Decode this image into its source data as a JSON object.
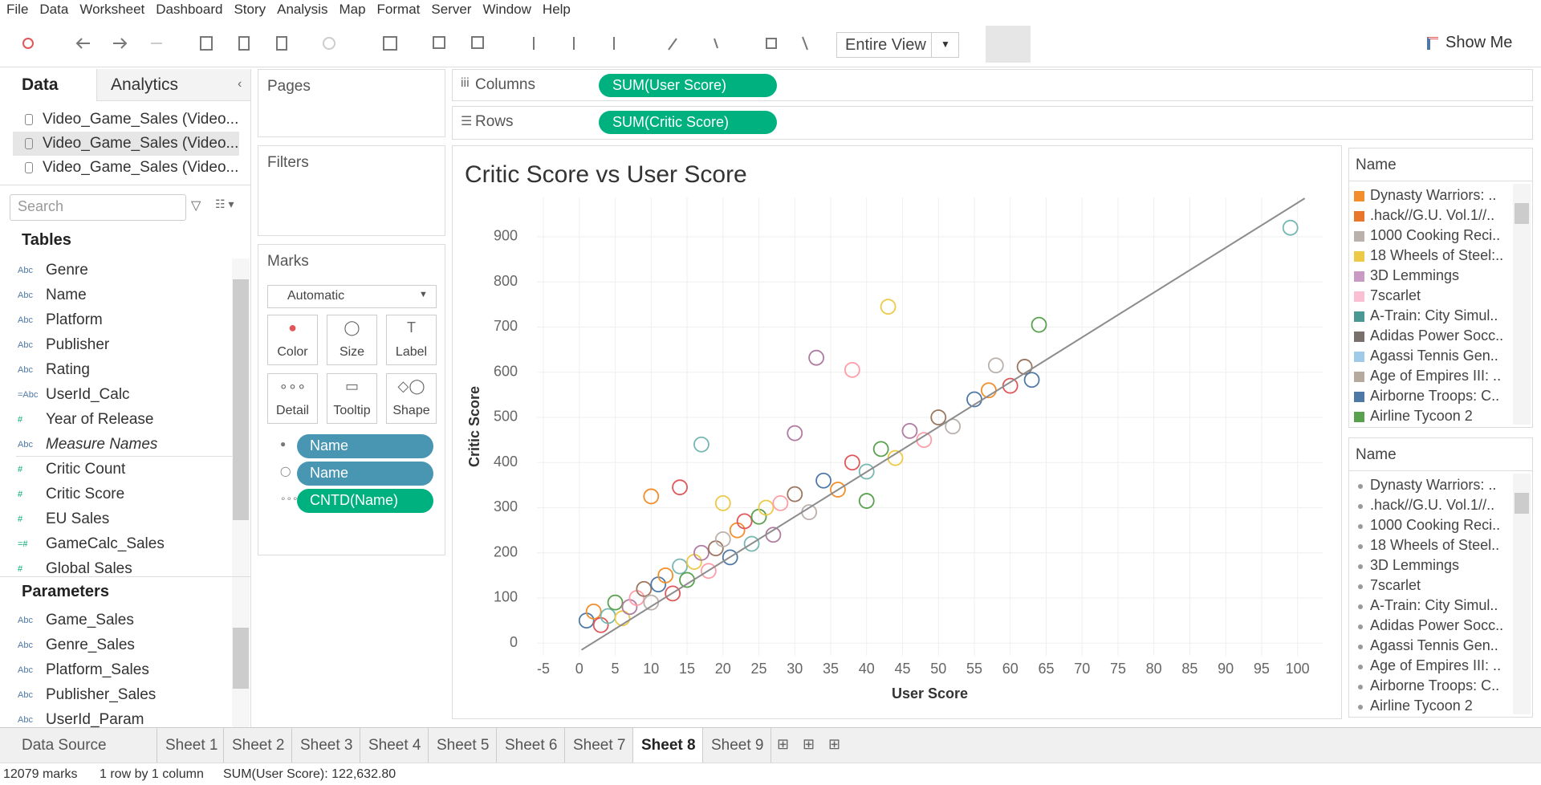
{
  "menu": [
    "File",
    "Data",
    "Worksheet",
    "Dashboard",
    "Story",
    "Analysis",
    "Map",
    "Format",
    "Server",
    "Window",
    "Help"
  ],
  "toolbar": {
    "view_mode": "Entire View",
    "show_me": "Show Me"
  },
  "data_pane": {
    "tabs": [
      "Data",
      "Analytics"
    ],
    "sources": [
      "Video_Game_Sales (Video...",
      "Video_Game_Sales (Video...",
      "Video_Game_Sales (Video..."
    ],
    "search_placeholder": "Search",
    "tables_heading": "Tables",
    "dimensions": [
      {
        "icon": "Abc",
        "name": "Genre"
      },
      {
        "icon": "Abc",
        "name": "Name"
      },
      {
        "icon": "Abc",
        "name": "Platform"
      },
      {
        "icon": "Abc",
        "name": "Publisher"
      },
      {
        "icon": "Abc",
        "name": "Rating"
      },
      {
        "icon": "=Abc",
        "name": "UserId_Calc"
      },
      {
        "icon": "#",
        "name": "Year of Release"
      },
      {
        "icon": "Abc",
        "name": "Measure Names",
        "italic": true
      }
    ],
    "measures": [
      {
        "icon": "#",
        "name": "Critic Count"
      },
      {
        "icon": "#",
        "name": "Critic Score"
      },
      {
        "icon": "#",
        "name": "EU Sales"
      },
      {
        "icon": "=#",
        "name": "GameCalc_Sales"
      },
      {
        "icon": "#",
        "name": "Global Sales"
      }
    ],
    "parameters_heading": "Parameters",
    "parameters": [
      {
        "icon": "Abc",
        "name": "Game_Sales"
      },
      {
        "icon": "Abc",
        "name": "Genre_Sales"
      },
      {
        "icon": "Abc",
        "name": "Platform_Sales"
      },
      {
        "icon": "Abc",
        "name": "Publisher_Sales"
      },
      {
        "icon": "Abc",
        "name": "UserId_Param"
      }
    ]
  },
  "cards": {
    "pages": "Pages",
    "filters": "Filters",
    "marks": {
      "title": "Marks",
      "mark_type": "Automatic",
      "buttons": [
        "Color",
        "Size",
        "Label",
        "Detail",
        "Tooltip",
        "Shape"
      ],
      "pills": [
        {
          "label": "Name",
          "color": "#4996b2"
        },
        {
          "label": "Name",
          "color": "#4996b2"
        },
        {
          "label": "CNTD(Name)",
          "color": "#00b180"
        }
      ]
    }
  },
  "shelves": {
    "columns": {
      "label": "Columns",
      "pill": "SUM(User Score)"
    },
    "rows": {
      "label": "Rows",
      "pill": "SUM(Critic Score)"
    }
  },
  "chart_data": {
    "type": "scatter",
    "title": "Critic Score vs User Score",
    "x_label": "User Score",
    "y_label": "Critic Score",
    "x": [
      1,
      2,
      3,
      4,
      5,
      6,
      7,
      8,
      9,
      10,
      11,
      12,
      13,
      14,
      15,
      16,
      17,
      18,
      19,
      20,
      21,
      22,
      23,
      24,
      25,
      26,
      27,
      28,
      30,
      32,
      34,
      36,
      38,
      40,
      42,
      44,
      46,
      48,
      50,
      52,
      55,
      57,
      60,
      99,
      64,
      43,
      33,
      38,
      62,
      58,
      63,
      10,
      14,
      17,
      40,
      20,
      30
    ],
    "y": [
      50,
      70,
      40,
      60,
      90,
      55,
      80,
      100,
      120,
      90,
      130,
      150,
      110,
      170,
      140,
      180,
      200,
      160,
      210,
      230,
      190,
      250,
      270,
      220,
      280,
      300,
      240,
      310,
      330,
      290,
      360,
      340,
      400,
      380,
      430,
      410,
      470,
      450,
      500,
      480,
      540,
      560,
      570,
      920,
      705,
      745,
      632,
      605,
      612,
      615,
      583,
      325,
      345,
      440,
      315,
      310,
      465
    ],
    "palette": [
      "#4e79a7",
      "#f28e2b",
      "#e15759",
      "#76b7b2",
      "#59a14f",
      "#edc948",
      "#b07aa1",
      "#ff9da7",
      "#9c755f",
      "#bab0ac"
    ],
    "xlim": [
      -5.9,
      103.5
    ],
    "ylim": [
      -28,
      987
    ],
    "xticks": [
      -5,
      0,
      5,
      10,
      15,
      20,
      25,
      30,
      35,
      40,
      45,
      50,
      55,
      60,
      65,
      70,
      75,
      80,
      85,
      90,
      95,
      100
    ],
    "yticks": [
      0,
      100,
      200,
      300,
      400,
      500,
      600,
      700,
      800,
      900
    ],
    "grid": true,
    "trend_line": {
      "x": [
        0.3,
        101
      ],
      "y": [
        -15,
        985
      ],
      "color": "#8c8c8c"
    }
  },
  "legends": [
    {
      "title": "Name",
      "items": [
        {
          "label": "Dynasty Warriors: ..",
          "color": "#f28e2b"
        },
        {
          "label": ".hack//G.U. Vol.1//..",
          "color": "#e8762b"
        },
        {
          "label": "1000 Cooking Reci..",
          "color": "#bab0ac"
        },
        {
          "label": "18 Wheels of Steel:..",
          "color": "#edc948"
        },
        {
          "label": "3D Lemmings",
          "color": "#c99bc4"
        },
        {
          "label": "7scarlet",
          "color": "#fabfd2"
        },
        {
          "label": "A-Train: City Simul..",
          "color": "#499894"
        },
        {
          "label": "Adidas Power Socc..",
          "color": "#79706e"
        },
        {
          "label": "Agassi Tennis Gen..",
          "color": "#a0cbe8"
        },
        {
          "label": "Age of Empires III: ..",
          "color": "#b6a99d"
        },
        {
          "label": "Airborne Troops: C..",
          "color": "#4e79a7"
        },
        {
          "label": "Airline Tycoon 2",
          "color": "#59a14f"
        }
      ]
    },
    {
      "title": "Name",
      "items": [
        {
          "label": "Dynasty Warriors: .."
        },
        {
          "label": ".hack//G.U. Vol.1//.."
        },
        {
          "label": "1000 Cooking Reci.."
        },
        {
          "label": "18 Wheels of Steel.."
        },
        {
          "label": "3D Lemmings"
        },
        {
          "label": "7scarlet"
        },
        {
          "label": "A-Train: City Simul.."
        },
        {
          "label": "Adidas Power Socc.."
        },
        {
          "label": "Agassi Tennis Gen.."
        },
        {
          "label": "Age of Empires III: .."
        },
        {
          "label": "Airborne Troops: C.."
        },
        {
          "label": "Airline Tycoon 2"
        }
      ]
    }
  ],
  "sheet_tabs": {
    "tabs": [
      "Data Source",
      "Sheet 1",
      "Sheet 2",
      "Sheet 3",
      "Sheet 4",
      "Sheet 5",
      "Sheet 6",
      "Sheet 7",
      "Sheet 8",
      "Sheet 9"
    ],
    "active": "Sheet 8"
  },
  "status": {
    "marks": "12079 marks",
    "layout": "1 row by 1 column",
    "summary": "SUM(User Score): 122,632.80"
  }
}
